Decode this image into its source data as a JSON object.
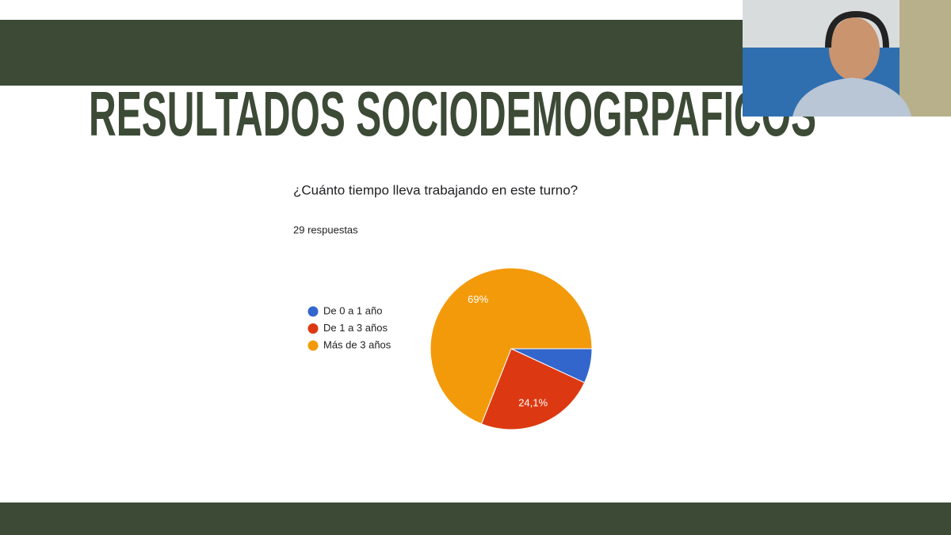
{
  "slide": {
    "title": "RESULTADOS SOCIODEMOGRPAFICOS"
  },
  "chart_data": {
    "type": "pie",
    "title": "¿Cuánto tiempo lleva trabajando en este turno?",
    "subtitle": "29 respuestas",
    "categories": [
      "De 0 a 1 año",
      "De 1 a 3 años",
      "Más de 3 años"
    ],
    "values": [
      6.9,
      24.1,
      69
    ],
    "value_labels": [
      null,
      "24,1%",
      "69%"
    ],
    "colors": [
      "#3366cc",
      "#dc3912",
      "#f39a0b"
    ],
    "legend": "left"
  }
}
